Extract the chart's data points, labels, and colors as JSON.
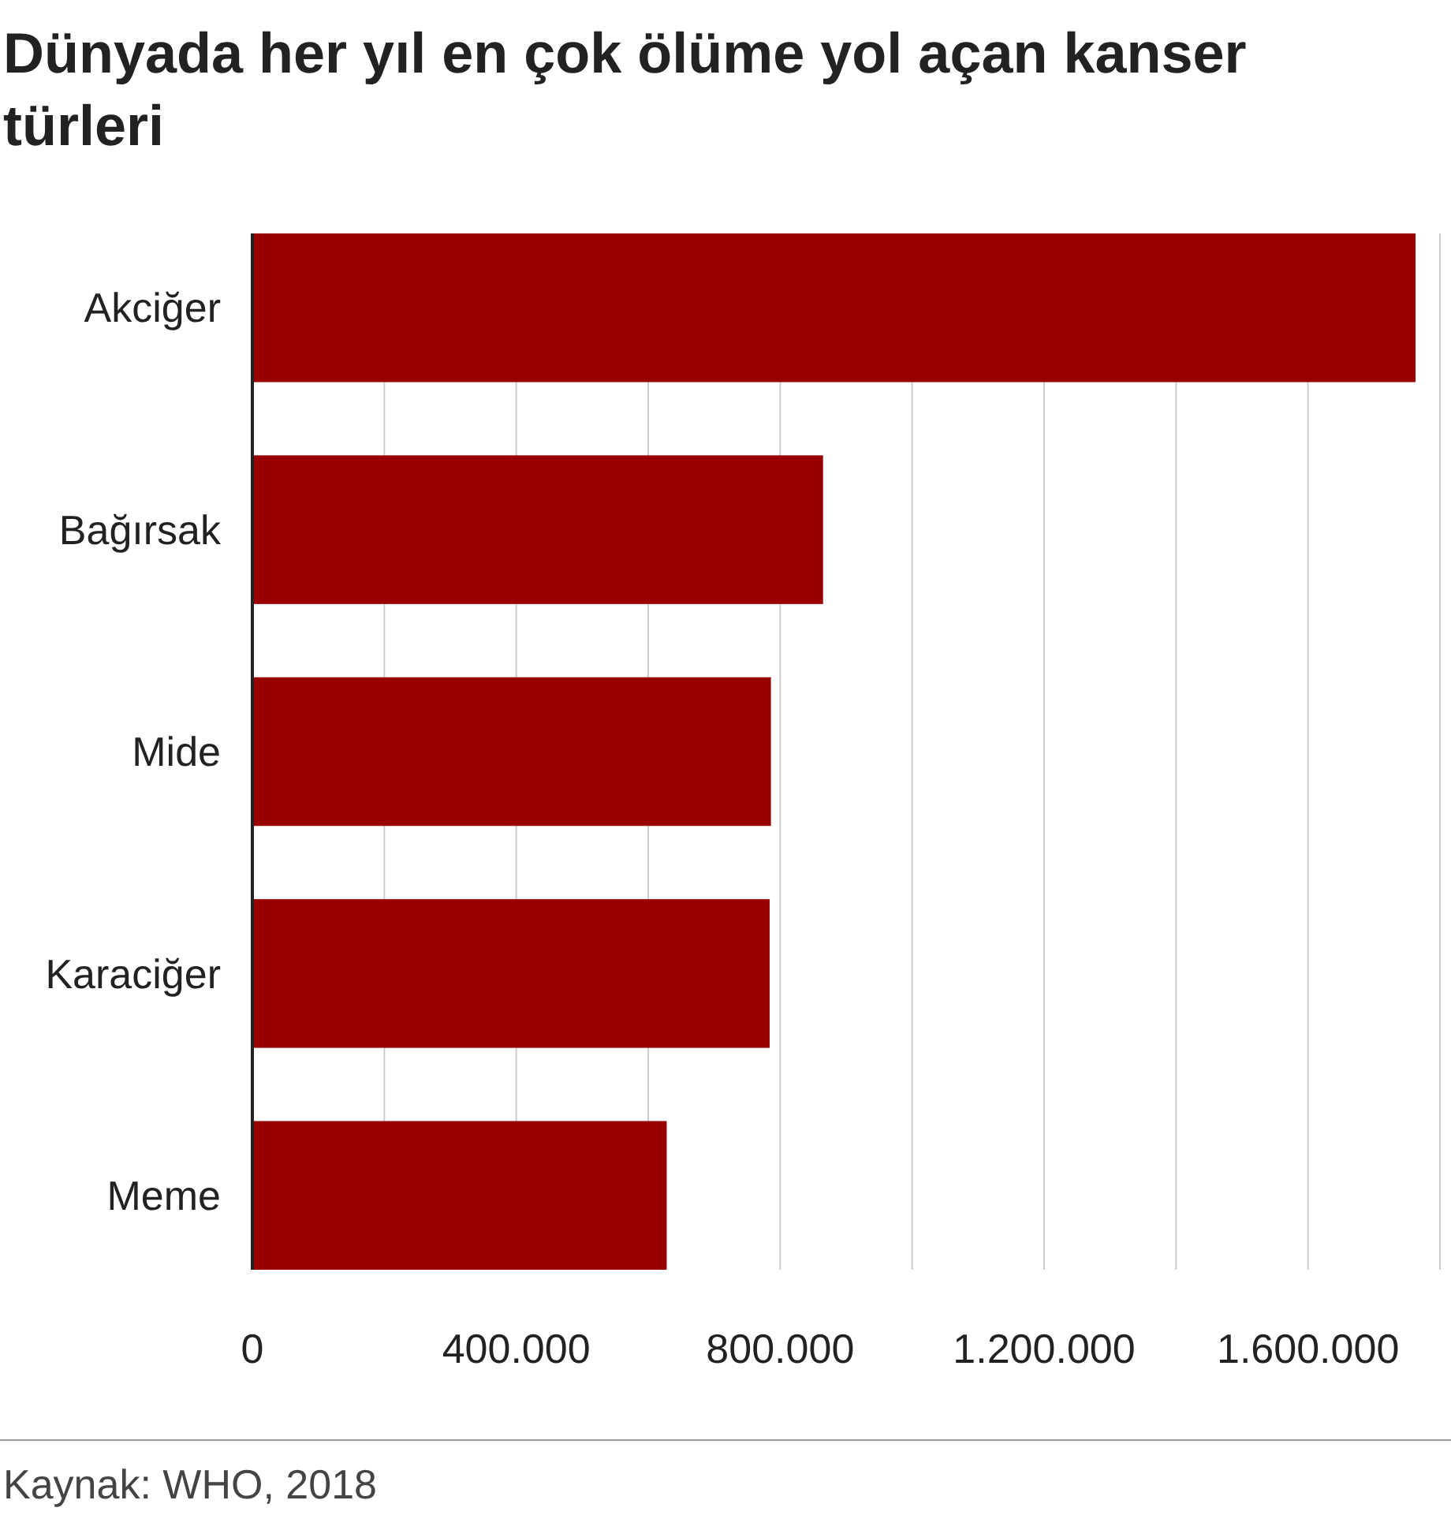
{
  "chart_data": {
    "type": "bar",
    "orientation": "horizontal",
    "title": "Dünyada her yıl en çok ölüme yol açan kanser türleri",
    "categories": [
      "Akciğer",
      "Bağırsak",
      "Mide",
      "Karaciğer",
      "Meme"
    ],
    "values": [
      1763000,
      865000,
      786000,
      784000,
      628000
    ],
    "color": "#990000",
    "xlim": [
      0,
      1800000
    ],
    "xticks": [
      0,
      {
        "value": 200000,
        "label": null
      },
      {
        "value": 400000,
        "label": "400.000"
      },
      {
        "value": 600000,
        "label": null
      },
      {
        "value": 800000,
        "label": "800.000"
      },
      {
        "value": 1000000,
        "label": null
      },
      {
        "value": 1200000,
        "label": "1.200.000"
      },
      {
        "value": 1400000,
        "label": null
      },
      {
        "value": 1600000,
        "label": "1.600.000"
      },
      {
        "value": 1800000,
        "label": null
      }
    ],
    "grid": "x",
    "annotations": [
      "Kaynak: WHO, 2018"
    ]
  }
}
